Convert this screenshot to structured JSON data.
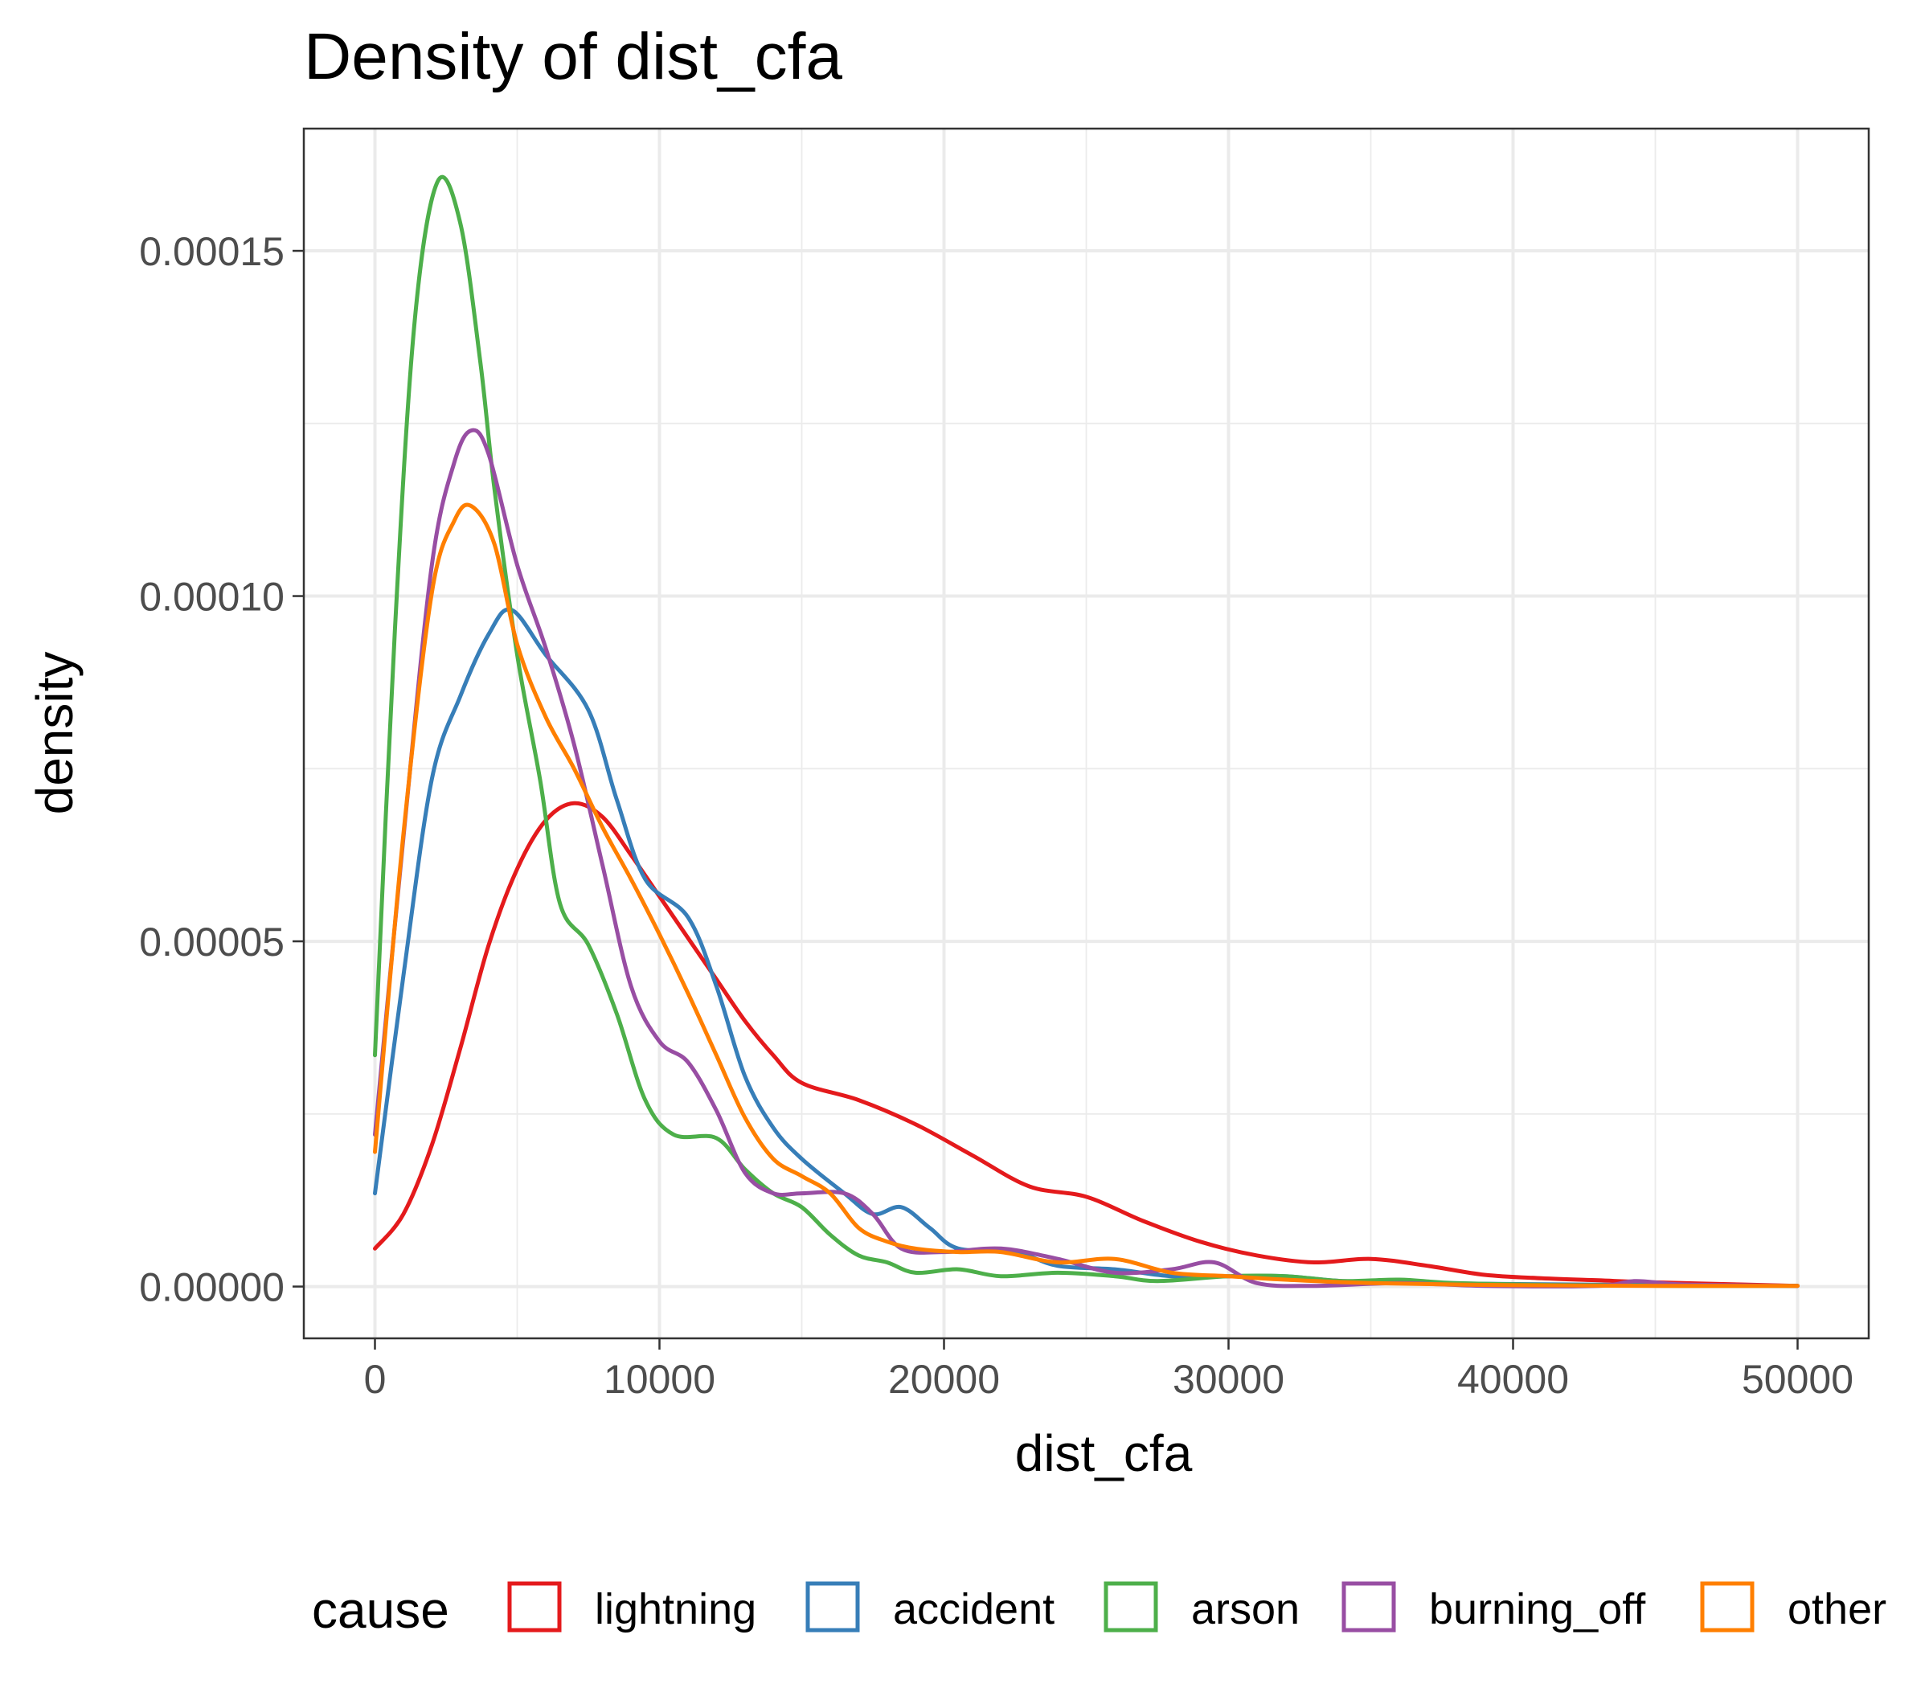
{
  "chart_data": {
    "type": "line",
    "title": "Density of dist_cfa",
    "xlabel": "dist_cfa",
    "ylabel": "density",
    "xlim": [
      -2500,
      52500
    ],
    "ylim": [
      -7.5e-06,
      0.0001677
    ],
    "xticks": [
      0,
      10000,
      20000,
      30000,
      40000,
      50000
    ],
    "xtick_labels": [
      "0",
      "10000",
      "20000",
      "30000",
      "40000",
      "50000"
    ],
    "yticks": [
      0,
      5e-05,
      0.0001,
      0.00015
    ],
    "ytick_labels": [
      "0.00000",
      "0.00005",
      "0.00010",
      "0.00015"
    ],
    "y_minor_gridlines": [
      2.5e-05,
      7.5e-05,
      0.000125
    ],
    "x_minor_gridlines": [
      5000,
      15000,
      25000,
      35000,
      45000
    ],
    "grid": true,
    "legend": {
      "title": "cause",
      "position": "bottom"
    },
    "series": [
      {
        "name": "lightning",
        "color": "#E41A1C",
        "points": [
          [
            0,
            5.5e-06
          ],
          [
            1000,
            1.05e-05
          ],
          [
            2000,
            2.05e-05
          ],
          [
            3000,
            3.45e-05
          ],
          [
            4000,
            4.95e-05
          ],
          [
            5000,
            6.05e-05
          ],
          [
            6000,
            6.75e-05
          ],
          [
            7000,
            7e-05
          ],
          [
            8000,
            6.8e-05
          ],
          [
            9000,
            6.25e-05
          ],
          [
            10000,
            5.65e-05
          ],
          [
            11000,
            5.05e-05
          ],
          [
            12000,
            4.45e-05
          ],
          [
            13000,
            3.85e-05
          ],
          [
            14000,
            3.35e-05
          ],
          [
            15000,
            2.95e-05
          ],
          [
            17000,
            2.7e-05
          ],
          [
            19000,
            2.35e-05
          ],
          [
            21000,
            1.9e-05
          ],
          [
            23000,
            1.45e-05
          ],
          [
            25000,
            1.3e-05
          ],
          [
            27000,
            9.5e-06
          ],
          [
            29000,
            6.5e-06
          ],
          [
            31000,
            4.5e-06
          ],
          [
            33000,
            3.5e-06
          ],
          [
            35000,
            4e-06
          ],
          [
            37000,
            3e-06
          ],
          [
            39000,
            1.7e-06
          ],
          [
            41000,
            1.2e-06
          ],
          [
            43000,
            9e-07
          ],
          [
            45000,
            6e-07
          ],
          [
            48000,
            3e-07
          ],
          [
            50000,
            1e-07
          ]
        ]
      },
      {
        "name": "accident",
        "color": "#377EB8",
        "points": [
          [
            0,
            1.35e-05
          ],
          [
            1000,
            4.5e-05
          ],
          [
            2000,
            7.35e-05
          ],
          [
            3000,
            8.55e-05
          ],
          [
            4000,
            9.45e-05
          ],
          [
            4800,
            9.8e-05
          ],
          [
            6000,
            9.15e-05
          ],
          [
            7500,
            8.35e-05
          ],
          [
            8500,
            7.05e-05
          ],
          [
            9500,
            5.9e-05
          ],
          [
            11000,
            5.35e-05
          ],
          [
            12000,
            4.35e-05
          ],
          [
            13000,
            3.05e-05
          ],
          [
            14000,
            2.3e-05
          ],
          [
            15000,
            1.85e-05
          ],
          [
            16500,
            1.35e-05
          ],
          [
            17500,
            1.05e-05
          ],
          [
            18500,
            1.15e-05
          ],
          [
            19500,
            8.5e-06
          ],
          [
            20500,
            5.5e-06
          ],
          [
            22500,
            5e-06
          ],
          [
            24000,
            3e-06
          ],
          [
            26000,
            2.5e-06
          ],
          [
            28000,
            1.5e-06
          ],
          [
            30000,
            1.5e-06
          ],
          [
            32000,
            1.5e-06
          ],
          [
            34000,
            8e-07
          ],
          [
            37000,
            5e-07
          ],
          [
            42000,
            3e-07
          ],
          [
            46000,
            2e-07
          ],
          [
            50000,
            1e-07
          ]
        ]
      },
      {
        "name": "arson",
        "color": "#4DAF4A",
        "points": [
          [
            0,
            3.35e-05
          ],
          [
            700,
            9.5e-05
          ],
          [
            1400,
            0.00014
          ],
          [
            2200,
            0.00016
          ],
          [
            3000,
            0.000154
          ],
          [
            3700,
            0.000134
          ],
          [
            4200,
            0.0001155
          ],
          [
            5000,
            9.15e-05
          ],
          [
            5800,
            7.35e-05
          ],
          [
            6500,
            5.55e-05
          ],
          [
            7500,
            4.95e-05
          ],
          [
            8500,
            3.95e-05
          ],
          [
            9500,
            2.7e-05
          ],
          [
            10500,
            2.2e-05
          ],
          [
            12000,
            2.15e-05
          ],
          [
            13000,
            1.7e-05
          ],
          [
            14000,
            1.35e-05
          ],
          [
            15000,
            1.15e-05
          ],
          [
            16000,
            7.5e-06
          ],
          [
            17000,
            4.5e-06
          ],
          [
            18000,
            3.5e-06
          ],
          [
            19000,
            2e-06
          ],
          [
            20500,
            2.5e-06
          ],
          [
            22000,
            1.5e-06
          ],
          [
            24000,
            2e-06
          ],
          [
            26000,
            1.5e-06
          ],
          [
            27500,
            8e-07
          ],
          [
            30000,
            1.5e-06
          ],
          [
            32000,
            1.5e-06
          ],
          [
            34000,
            8e-07
          ],
          [
            36000,
            1e-06
          ],
          [
            38000,
            5e-07
          ],
          [
            42000,
            2e-07
          ],
          [
            46000,
            1e-07
          ],
          [
            50000,
            1e-07
          ]
        ]
      },
      {
        "name": "burning_off",
        "color": "#984EA3",
        "points": [
          [
            0,
            2.2e-05
          ],
          [
            1000,
            6.5e-05
          ],
          [
            2000,
            0.0001045
          ],
          [
            2800,
            0.0001195
          ],
          [
            3400,
            0.000124
          ],
          [
            4000,
            0.0001205
          ],
          [
            5000,
            0.0001045
          ],
          [
            6000,
            9.25e-05
          ],
          [
            7000,
            7.85e-05
          ],
          [
            8000,
            6.1e-05
          ],
          [
            9000,
            4.35e-05
          ],
          [
            10000,
            3.55e-05
          ],
          [
            11000,
            3.25e-05
          ],
          [
            12000,
            2.55e-05
          ],
          [
            13000,
            1.65e-05
          ],
          [
            14000,
            1.35e-05
          ],
          [
            15000,
            1.35e-05
          ],
          [
            16500,
            1.35e-05
          ],
          [
            17500,
            1.05e-05
          ],
          [
            18500,
            5.5e-06
          ],
          [
            20000,
            5e-06
          ],
          [
            22000,
            5.5e-06
          ],
          [
            24000,
            4e-06
          ],
          [
            26000,
            2e-06
          ],
          [
            28000,
            2.5e-06
          ],
          [
            29500,
            3.5e-06
          ],
          [
            31000,
            5e-07
          ],
          [
            33000,
            1e-07
          ],
          [
            36000,
            5e-07
          ],
          [
            39000,
            1e-07
          ],
          [
            43000,
            1e-07
          ],
          [
            44300,
            8e-07
          ],
          [
            46000,
            3e-07
          ],
          [
            50000,
            1e-07
          ]
        ]
      },
      {
        "name": "other",
        "color": "#FF7F00",
        "points": [
          [
            0,
            1.95e-05
          ],
          [
            1000,
            6.55e-05
          ],
          [
            2000,
            0.0001005
          ],
          [
            2800,
            0.000111
          ],
          [
            3400,
            0.000113
          ],
          [
            4200,
            0.0001075
          ],
          [
            5000,
            9.3e-05
          ],
          [
            6000,
            8.25e-05
          ],
          [
            7000,
            7.5e-05
          ],
          [
            8000,
            6.65e-05
          ],
          [
            9000,
            5.9e-05
          ],
          [
            10000,
            5.1e-05
          ],
          [
            11000,
            4.25e-05
          ],
          [
            12000,
            3.35e-05
          ],
          [
            13000,
            2.45e-05
          ],
          [
            14000,
            1.85e-05
          ],
          [
            15000,
            1.6e-05
          ],
          [
            16000,
            1.35e-05
          ],
          [
            17000,
            8.5e-06
          ],
          [
            18000,
            6.5e-06
          ],
          [
            19000,
            5.5e-06
          ],
          [
            20500,
            5e-06
          ],
          [
            22000,
            5e-06
          ],
          [
            24000,
            3.5e-06
          ],
          [
            26000,
            4e-06
          ],
          [
            28000,
            2e-06
          ],
          [
            30000,
            1.5e-06
          ],
          [
            32000,
            1e-06
          ],
          [
            35000,
            5e-07
          ],
          [
            40000,
            2e-07
          ],
          [
            45000,
            1e-07
          ],
          [
            50000,
            1e-07
          ]
        ]
      }
    ]
  }
}
